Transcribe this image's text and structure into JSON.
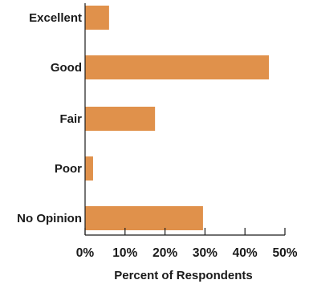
{
  "chart_data": {
    "type": "bar",
    "orientation": "horizontal",
    "categories": [
      "Excellent",
      "Good",
      "Fair",
      "Poor",
      "No Opinion"
    ],
    "values": [
      6,
      46,
      17.5,
      2,
      29.5
    ],
    "xlabel": "Percent of Respondents",
    "ylabel": "",
    "xlim": [
      0,
      50
    ],
    "ticks": [
      "0%",
      "10%",
      "20%",
      "30%",
      "40%",
      "50%"
    ],
    "bar_color": "#e0914b",
    "grid": false,
    "legend": "none"
  }
}
